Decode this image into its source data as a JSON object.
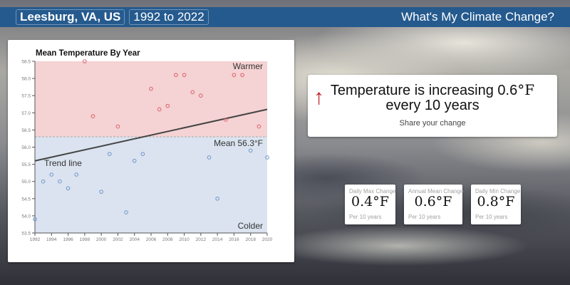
{
  "header": {
    "location": "Leesburg, VA, US",
    "year_range": "1992 to 2022",
    "app_title": "What's My Climate Change?"
  },
  "summary": {
    "arrow_icon": "arrow-up-icon",
    "arrow_color": "#c0262d",
    "line1_prefix": "Temperature is increasing 0.6",
    "unit": "°F",
    "line2": "every 10 years",
    "share_label": "Share your change"
  },
  "stats": [
    {
      "label": "Daily Max Change",
      "value": "0.4",
      "unit": "°F",
      "footnote": "Per 10 years"
    },
    {
      "label": "Annual Mean Change",
      "value": "0.6",
      "unit": "°F",
      "footnote": "Per 10 years"
    },
    {
      "label": "Daily Min Change",
      "value": "0.8",
      "unit": "°F",
      "footnote": "Per 10 years"
    }
  ],
  "chart_data": {
    "type": "scatter",
    "title": "Mean Temperature By Year",
    "xlabel": "",
    "ylabel": "",
    "xlim": [
      1992,
      2020
    ],
    "ylim": [
      53.5,
      58.5
    ],
    "x_ticks": [
      1992,
      1994,
      1996,
      1998,
      2000,
      2002,
      2004,
      2006,
      2008,
      2010,
      2012,
      2014,
      2016,
      2018,
      2020
    ],
    "y_ticks": [
      53.5,
      54.0,
      54.5,
      55.0,
      55.5,
      56.0,
      56.5,
      57.0,
      57.5,
      58.0,
      58.5
    ],
    "grid": false,
    "x": [
      1992,
      1993,
      1994,
      1995,
      1996,
      1997,
      1998,
      1999,
      2000,
      2001,
      2002,
      2003,
      2004,
      2005,
      2006,
      2007,
      2008,
      2009,
      2010,
      2011,
      2012,
      2013,
      2014,
      2015,
      2016,
      2017,
      2018,
      2019,
      2020
    ],
    "values": [
      53.9,
      55.0,
      55.2,
      55.0,
      54.8,
      55.2,
      58.5,
      56.9,
      54.7,
      55.8,
      56.6,
      54.1,
      55.6,
      55.8,
      57.7,
      57.1,
      57.2,
      58.1,
      58.1,
      57.6,
      57.5,
      55.7,
      54.5,
      56.8,
      58.1,
      58.1,
      55.9,
      56.6,
      55.7
    ],
    "mean": 56.3,
    "mean_label": "Mean 56.3°F",
    "trend": {
      "start": [
        1992,
        55.6
      ],
      "end": [
        2020,
        57.1
      ]
    },
    "annotations": {
      "warmer": "Warmer",
      "colder": "Colder",
      "trend_label": "Trend line"
    },
    "colors": {
      "warm_band": "#f5d2d3",
      "cold_band": "#dae3ef",
      "warm_point": "#d9616a",
      "cold_point": "#6d95cc",
      "trend": "#444444",
      "mean_line": "#aaaaaa"
    }
  }
}
